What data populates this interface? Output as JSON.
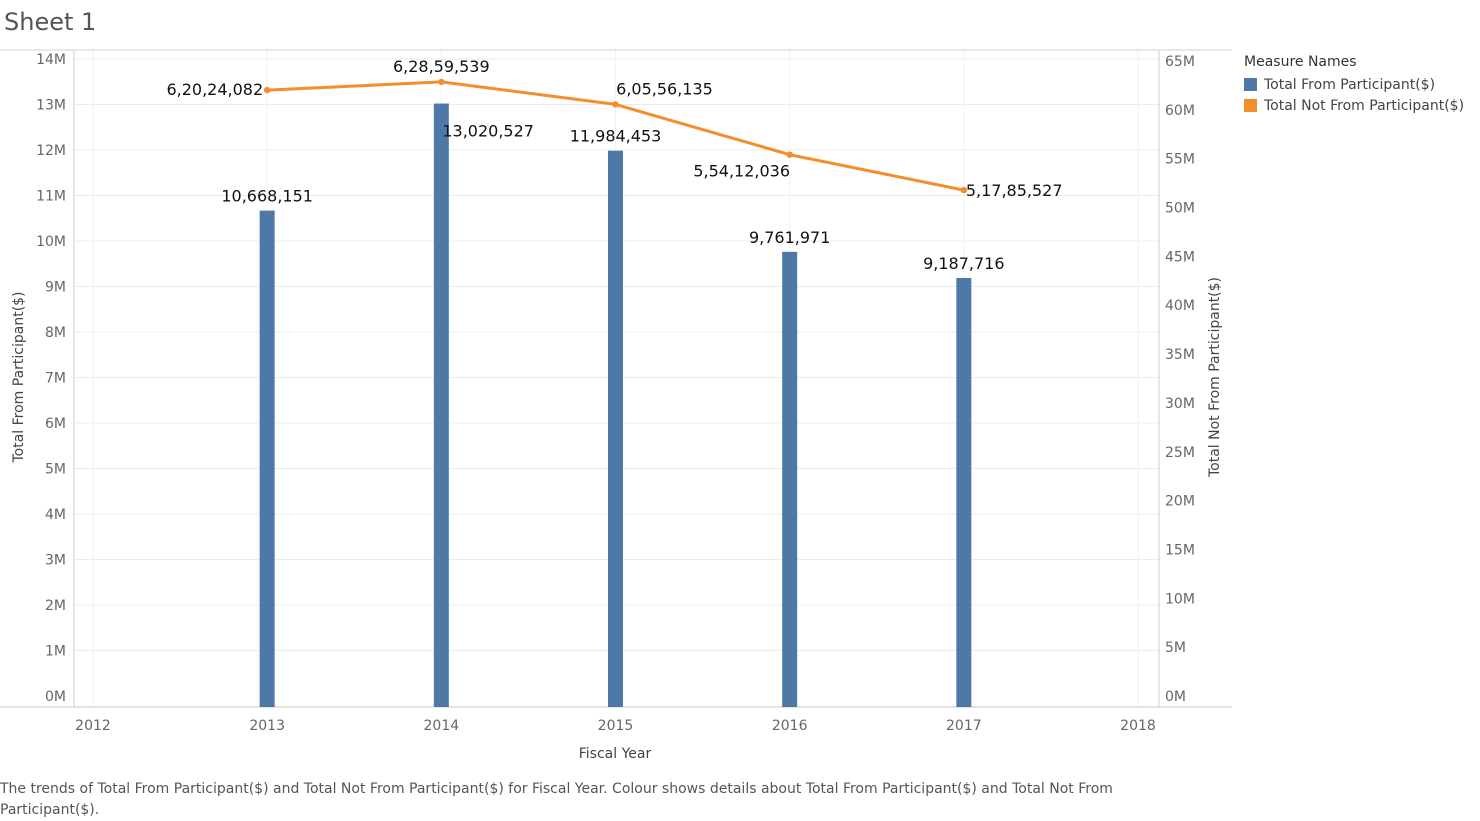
{
  "sheet_title": "Sheet 1",
  "legend": {
    "title": "Measure Names",
    "items": [
      {
        "label": "Total From Participant($)",
        "color": "#4e79a7"
      },
      {
        "label": "Total Not From Participant($)",
        "color": "#f28e2b"
      }
    ]
  },
  "caption": "The trends of Total From Participant($) and Total Not From Participant($) for Fiscal Year.  Colour shows details about Total From Participant($) and Total Not From Participant($).",
  "chart_data": {
    "type": "bar",
    "xlabel": "Fiscal Year",
    "ylabel": "Total From Participant($)",
    "y2label": "Total Not From Participant($)",
    "x_ticks": [
      "2012",
      "2013",
      "2014",
      "2015",
      "2016",
      "2017",
      "2018"
    ],
    "xlim": [
      2012,
      2018
    ],
    "ylim": [
      0,
      14000000
    ],
    "y2lim": [
      0,
      65000000
    ],
    "y_ticks": [
      "0M",
      "1M",
      "2M",
      "3M",
      "4M",
      "5M",
      "6M",
      "7M",
      "8M",
      "9M",
      "10M",
      "11M",
      "12M",
      "13M",
      "14M"
    ],
    "y2_ticks": [
      "0M",
      "5M",
      "10M",
      "15M",
      "20M",
      "25M",
      "30M",
      "35M",
      "40M",
      "45M",
      "50M",
      "55M",
      "60M",
      "65M"
    ],
    "grid": true,
    "legend_position": "right",
    "series": [
      {
        "name": "Total From Participant($)",
        "type": "bar",
        "axis": "left",
        "color": "#4e79a7",
        "x": [
          2013,
          2014,
          2015,
          2016,
          2017
        ],
        "values": [
          10668151,
          13020527,
          11984453,
          9761971,
          9187716
        ],
        "labels": [
          "10,668,151",
          "13,020,527",
          "11,984,453",
          "9,761,971",
          "9,187,716"
        ]
      },
      {
        "name": "Total Not From Participant($)",
        "type": "line",
        "axis": "right",
        "color": "#f28e2b",
        "x": [
          2013,
          2014,
          2015,
          2016,
          2017
        ],
        "values": [
          62024082,
          62859539,
          60556135,
          55412036,
          51785527
        ],
        "labels": [
          "6,20,24,082",
          "6,28,59,539",
          "6,05,56,135",
          "5,54,12,036",
          "5,17,85,527"
        ]
      }
    ]
  }
}
